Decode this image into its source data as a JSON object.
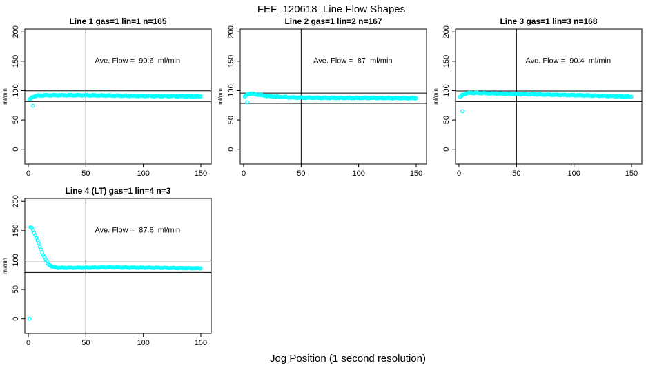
{
  "chart_data": {
    "type": "scatter",
    "title": "FEF_120618  Line Flow Shapes",
    "xlabel": "Jog Position (1 second resolution)",
    "ylabel": "ml/min",
    "xlim": [
      0,
      150
    ],
    "ylim": [
      0,
      200
    ],
    "x_ticks": [
      0,
      50,
      100,
      150
    ],
    "y_ticks": [
      0,
      50,
      100,
      150,
      200
    ],
    "point_color": "#00FFFF",
    "axis_color": "#000000",
    "x_step": 1,
    "legend": "none",
    "grid": false,
    "panels": [
      {
        "name": "line-1",
        "title": "Line 1 gas=1 lin=1 n=165",
        "gas": 1,
        "lin": 1,
        "n": 165,
        "annotation": "Ave. Flow =  90.6  ml/min",
        "ave_flow_ml_min": 90.6,
        "ref_lines_y": [
          99.7,
          81.5
        ],
        "ref_line_x": 50,
        "y_scatter": 1.1,
        "series_breakpoints": [
          [
            1,
            84.5
          ],
          [
            2,
            86.5
          ],
          [
            3,
            88
          ],
          [
            5,
            90
          ],
          [
            8,
            91.5
          ],
          [
            15,
            92
          ],
          [
            50,
            92
          ],
          [
            90,
            91
          ],
          [
            130,
            90.5
          ],
          [
            150,
            90
          ]
        ],
        "outlier_points": [
          [
            4,
            74
          ]
        ]
      },
      {
        "name": "line-2",
        "title": "Line 2 gas=1 lin=2 n=167",
        "gas": 1,
        "lin": 2,
        "n": 167,
        "annotation": "Ave. Flow =  87  ml/min",
        "ave_flow_ml_min": 87,
        "ref_lines_y": [
          95.7,
          78.3
        ],
        "ref_line_x": 50,
        "y_scatter": 1.0,
        "series_breakpoints": [
          [
            1,
            89
          ],
          [
            2,
            91.5
          ],
          [
            4,
            94.5
          ],
          [
            6,
            95
          ],
          [
            9,
            94
          ],
          [
            14,
            92.5
          ],
          [
            22,
            90.5
          ],
          [
            32,
            89
          ],
          [
            48,
            88
          ],
          [
            75,
            87.5
          ],
          [
            115,
            87.5
          ],
          [
            150,
            87
          ]
        ],
        "outlier_points": [
          [
            3,
            80
          ]
        ]
      },
      {
        "name": "line-3",
        "title": "Line 3 gas=1 lin=3 n=168",
        "gas": 1,
        "lin": 3,
        "n": 168,
        "annotation": "Ave. Flow =  90.4  ml/min",
        "ave_flow_ml_min": 90.4,
        "ref_lines_y": [
          99.4,
          81.4
        ],
        "ref_line_x": 50,
        "y_scatter": 1.1,
        "series_breakpoints": [
          [
            1,
            88.5
          ],
          [
            3,
            92.5
          ],
          [
            6,
            95
          ],
          [
            10,
            96
          ],
          [
            22,
            95.5
          ],
          [
            40,
            94.5
          ],
          [
            65,
            93.5
          ],
          [
            90,
            92.5
          ],
          [
            115,
            91.5
          ],
          [
            135,
            90.5
          ],
          [
            150,
            89.5
          ]
        ],
        "outlier_points": [
          [
            3,
            65
          ]
        ]
      },
      {
        "name": "line-4-lt",
        "title": "Line 4 (LT) gas=1 lin=4 n=3",
        "gas": 1,
        "lin": 4,
        "n": 3,
        "annotation": "Ave. Flow =  87.8  ml/min",
        "ave_flow_ml_min": 87.8,
        "ref_lines_y": [
          96.6,
          79.0
        ],
        "ref_line_x": 50,
        "y_scatter": 0.8,
        "series_breakpoints": [
          [
            2,
            156
          ],
          [
            3,
            154.5
          ],
          [
            4,
            151
          ],
          [
            5,
            147
          ],
          [
            6,
            142.5
          ],
          [
            7,
            138
          ],
          [
            8,
            133
          ],
          [
            9,
            128
          ],
          [
            10,
            123
          ],
          [
            11,
            118
          ],
          [
            12,
            113.5
          ],
          [
            13,
            109
          ],
          [
            14,
            105
          ],
          [
            15,
            101
          ],
          [
            16,
            97.5
          ],
          [
            17,
            94.5
          ],
          [
            18,
            92.5
          ],
          [
            19,
            91
          ],
          [
            20,
            89.5
          ],
          [
            22,
            88
          ],
          [
            26,
            87
          ],
          [
            40,
            87
          ],
          [
            70,
            87.5
          ],
          [
            110,
            87
          ],
          [
            150,
            86
          ]
        ],
        "outlier_points": [
          [
            1,
            0
          ]
        ]
      }
    ]
  }
}
